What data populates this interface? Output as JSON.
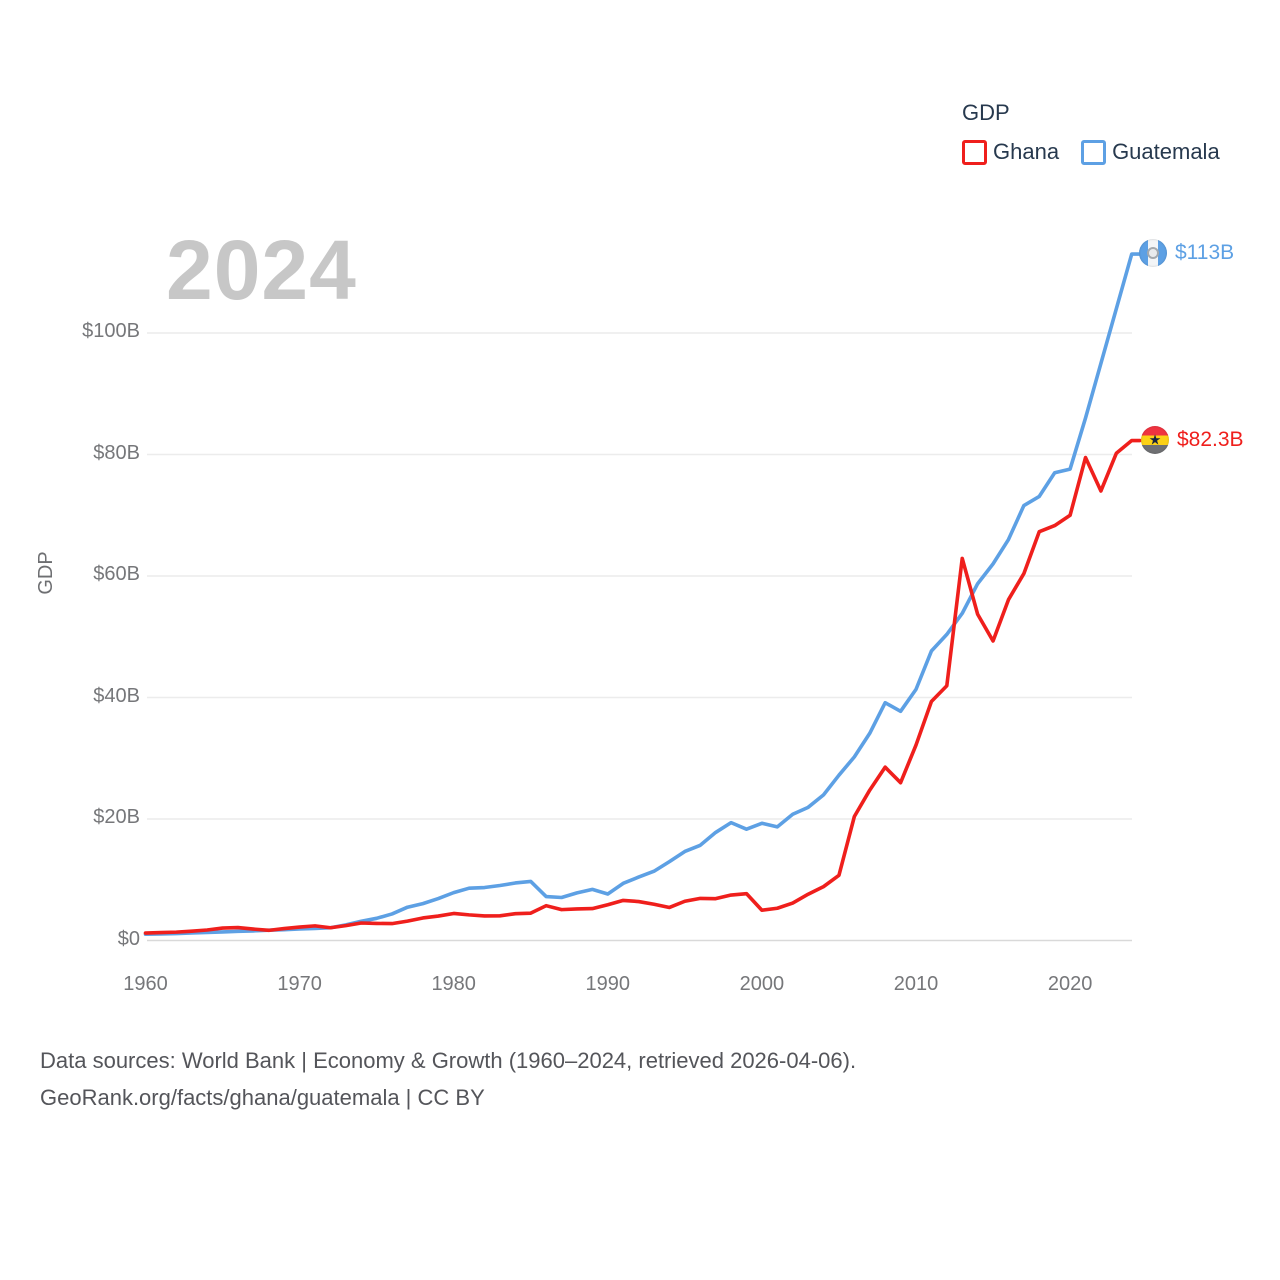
{
  "legend": {
    "title": "GDP",
    "series": [
      {
        "label": "Ghana",
        "color": "#ef1f1c"
      },
      {
        "label": "Guatemala",
        "color": "#5da0e4"
      }
    ]
  },
  "watermark": "2024",
  "y_axis_title": "GDP",
  "end_labels": {
    "guatemala": "$113B",
    "ghana": "$82.3B"
  },
  "footer": {
    "line1": "Data sources: World Bank | Economy & Growth (1960–2024, retrieved 2026-04-06).",
    "line2": "GeoRank.org/facts/ghana/guatemala | CC BY"
  },
  "chart_data": {
    "type": "line",
    "title": "GDP",
    "xlabel": "",
    "ylabel": "GDP",
    "grid": true,
    "legend_position": "top-right",
    "xlim": [
      1960,
      2024
    ],
    "ylim": [
      0,
      118
    ],
    "x_ticks": [
      1960,
      1970,
      1980,
      1990,
      2000,
      2010,
      2020
    ],
    "x_tick_labels": [
      "1960",
      "1970",
      "1980",
      "1990",
      "2000",
      "2010",
      "2020"
    ],
    "y_ticks": [
      0,
      20,
      40,
      60,
      80,
      100
    ],
    "y_tick_labels": [
      "$0",
      "$20B",
      "$40B",
      "$60B",
      "$80B",
      "$100B"
    ],
    "x": [
      1960,
      1961,
      1962,
      1963,
      1964,
      1965,
      1966,
      1967,
      1968,
      1969,
      1970,
      1971,
      1972,
      1973,
      1974,
      1975,
      1976,
      1977,
      1978,
      1979,
      1980,
      1981,
      1982,
      1983,
      1984,
      1985,
      1986,
      1987,
      1988,
      1989,
      1990,
      1991,
      1992,
      1993,
      1994,
      1995,
      1996,
      1997,
      1998,
      1999,
      2000,
      2001,
      2002,
      2003,
      2004,
      2005,
      2006,
      2007,
      2008,
      2009,
      2010,
      2011,
      2012,
      2013,
      2014,
      2015,
      2016,
      2017,
      2018,
      2019,
      2020,
      2021,
      2022,
      2023,
      2024
    ],
    "series": [
      {
        "name": "Ghana",
        "color": "#ef1f1c",
        "unit": "billion USD",
        "end_label": "$82.3B",
        "values": [
          1.22,
          1.3,
          1.38,
          1.54,
          1.73,
          2.05,
          2.13,
          1.88,
          1.67,
          1.96,
          2.21,
          2.41,
          2.1,
          2.45,
          2.88,
          2.81,
          2.78,
          3.19,
          3.71,
          4.02,
          4.45,
          4.22,
          4.05,
          4.06,
          4.41,
          4.5,
          5.73,
          5.08,
          5.2,
          5.25,
          5.89,
          6.6,
          6.41,
          5.97,
          5.44,
          6.46,
          6.93,
          6.89,
          7.48,
          7.71,
          4.98,
          5.31,
          6.16,
          7.62,
          8.87,
          10.73,
          20.41,
          24.76,
          28.53,
          25.98,
          32.17,
          39.34,
          41.94,
          62.9,
          53.7,
          49.3,
          56.1,
          60.4,
          67.3,
          68.3,
          70.0,
          79.5,
          74.0,
          80.2,
          82.3
        ]
      },
      {
        "name": "Guatemala",
        "color": "#5da0e4",
        "unit": "billion USD",
        "end_label": "$113B",
        "values": [
          1.04,
          1.08,
          1.14,
          1.24,
          1.33,
          1.41,
          1.5,
          1.58,
          1.69,
          1.78,
          1.9,
          1.98,
          2.1,
          2.57,
          3.16,
          3.65,
          4.37,
          5.48,
          6.07,
          6.9,
          7.88,
          8.61,
          8.72,
          9.05,
          9.47,
          9.72,
          7.23,
          7.08,
          7.84,
          8.41,
          7.65,
          9.41,
          10.44,
          11.4,
          12.98,
          14.66,
          15.67,
          17.79,
          19.4,
          18.32,
          19.29,
          18.7,
          20.78,
          21.92,
          23.97,
          27.21,
          30.23,
          34.11,
          39.14,
          37.73,
          41.34,
          47.65,
          50.39,
          53.85,
          58.73,
          62.0,
          66.0,
          71.6,
          73.1,
          77.0,
          77.6,
          86.0,
          95.0,
          104.0,
          113.0
        ]
      }
    ]
  }
}
